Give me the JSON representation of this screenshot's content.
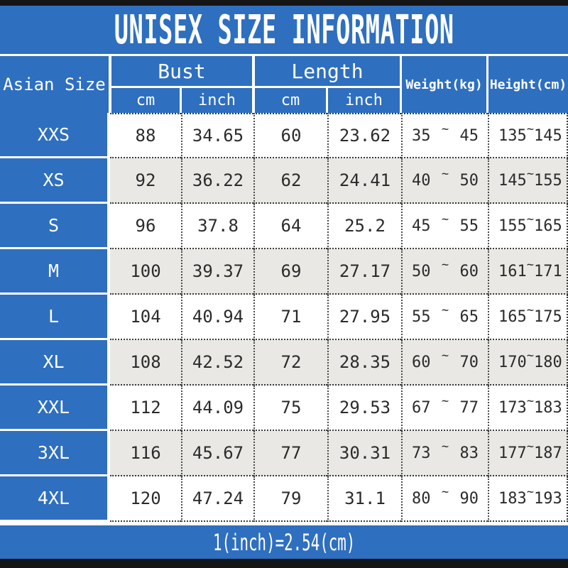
{
  "title": "UNISEX SIZE INFORMATION",
  "colors": {
    "header_blue": "#2e6fbf",
    "top_bottom_bar": "#151515",
    "alt_row_gray": "#e9e8e5",
    "data_text": "#2b2b2b"
  },
  "table": {
    "size_column_header": "Asian Size",
    "groups": [
      {
        "label": "Bust",
        "sub": [
          "cm",
          "inch"
        ]
      },
      {
        "label": "Length",
        "sub": [
          "cm",
          "inch"
        ]
      }
    ],
    "single_headers": [
      "Weight(kg)",
      "Height(cm)"
    ],
    "range_separator": "~",
    "rows": [
      {
        "size": "XXS",
        "bust_cm": "88",
        "bust_inch": "34.65",
        "length_cm": "60",
        "length_inch": "23.62",
        "weight_kg": [
          "35",
          "45"
        ],
        "height_cm": [
          "135",
          "145"
        ]
      },
      {
        "size": "XS",
        "bust_cm": "92",
        "bust_inch": "36.22",
        "length_cm": "62",
        "length_inch": "24.41",
        "weight_kg": [
          "40",
          "50"
        ],
        "height_cm": [
          "145",
          "155"
        ]
      },
      {
        "size": "S",
        "bust_cm": "96",
        "bust_inch": "37.8",
        "length_cm": "64",
        "length_inch": "25.2",
        "weight_kg": [
          "45",
          "55"
        ],
        "height_cm": [
          "155",
          "165"
        ]
      },
      {
        "size": "M",
        "bust_cm": "100",
        "bust_inch": "39.37",
        "length_cm": "69",
        "length_inch": "27.17",
        "weight_kg": [
          "50",
          "60"
        ],
        "height_cm": [
          "161",
          "171"
        ]
      },
      {
        "size": "L",
        "bust_cm": "104",
        "bust_inch": "40.94",
        "length_cm": "71",
        "length_inch": "27.95",
        "weight_kg": [
          "55",
          "65"
        ],
        "height_cm": [
          "165",
          "175"
        ]
      },
      {
        "size": "XL",
        "bust_cm": "108",
        "bust_inch": "42.52",
        "length_cm": "72",
        "length_inch": "28.35",
        "weight_kg": [
          "60",
          "70"
        ],
        "height_cm": [
          "170",
          "180"
        ]
      },
      {
        "size": "XXL",
        "bust_cm": "112",
        "bust_inch": "44.09",
        "length_cm": "75",
        "length_inch": "29.53",
        "weight_kg": [
          "67",
          "77"
        ],
        "height_cm": [
          "173",
          "183"
        ]
      },
      {
        "size": "3XL",
        "bust_cm": "116",
        "bust_inch": "45.67",
        "length_cm": "77",
        "length_inch": "30.31",
        "weight_kg": [
          "73",
          "83"
        ],
        "height_cm": [
          "177",
          "187"
        ]
      },
      {
        "size": "4XL",
        "bust_cm": "120",
        "bust_inch": "47.24",
        "length_cm": "79",
        "length_inch": "31.1",
        "weight_kg": [
          "80",
          "90"
        ],
        "height_cm": [
          "183",
          "193"
        ]
      }
    ]
  },
  "footer": {
    "note": "1(inch)=2.54(cm)"
  }
}
